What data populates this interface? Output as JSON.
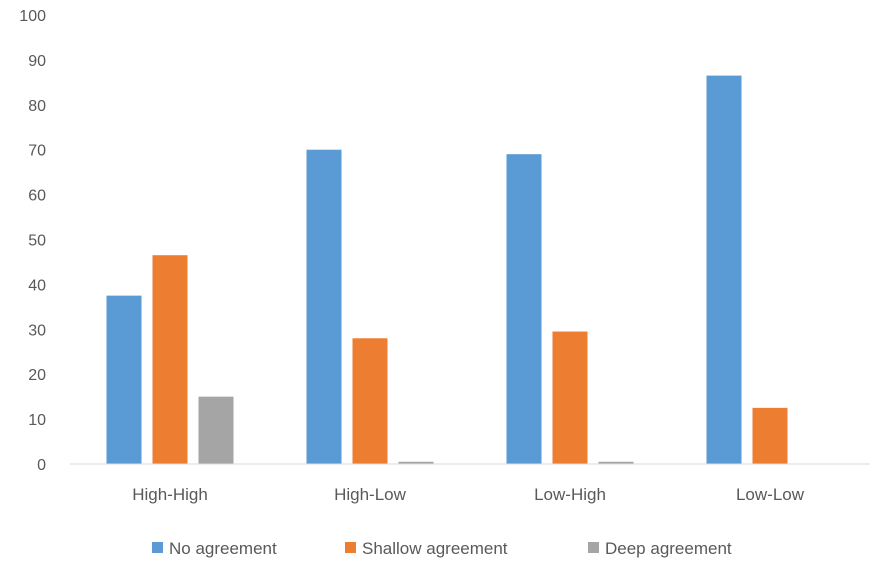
{
  "chart_data": {
    "type": "bar",
    "categories": [
      "High-High",
      "High-Low",
      "Low-High",
      "Low-Low"
    ],
    "series": [
      {
        "name": "No agreement",
        "values": [
          37.5,
          70,
          69,
          86.5
        ],
        "color": "#5B9BD5"
      },
      {
        "name": "Shallow agreement",
        "values": [
          46.5,
          28,
          29.5,
          12.5
        ],
        "color": "#ED7D31"
      },
      {
        "name": "Deep agreement",
        "values": [
          15,
          0.5,
          0.5,
          0
        ],
        "color": "#A5A5A5"
      }
    ],
    "y_ticks": [
      "0",
      "10",
      "20",
      "30",
      "40",
      "50",
      "60",
      "70",
      "80",
      "90",
      "100"
    ],
    "ylim": [
      0,
      100
    ],
    "grid": false,
    "legend_position": "bottom"
  }
}
